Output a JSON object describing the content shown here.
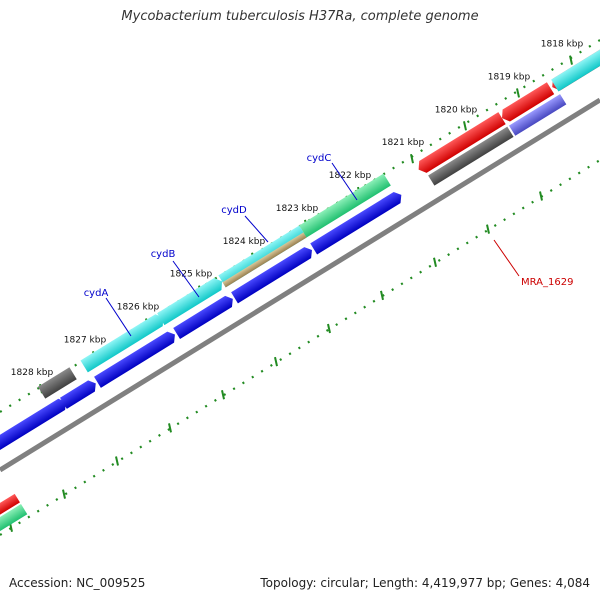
{
  "title": "Mycobacterium tuberculosis H37Ra, complete genome",
  "footer": {
    "accession": "Accession: NC_009525",
    "summary": "Topology: circular; Length: 4,419,977 bp; Genes: 4,084"
  },
  "ruler": {
    "ticks": [
      "1818 kbp",
      "1819 kbp",
      "1820 kbp",
      "1821 kbp",
      "1822 kbp",
      "1823 kbp",
      "1824 kbp",
      "1825 kbp",
      "1826 kbp",
      "1827 kbp",
      "1828 kbp"
    ]
  },
  "gene_labels": [
    {
      "name": "cydC",
      "color": "#0000cc"
    },
    {
      "name": "cydD",
      "color": "#0000cc"
    },
    {
      "name": "cydB",
      "color": "#0000cc"
    },
    {
      "name": "cydA",
      "color": "#0000cc"
    },
    {
      "name": "MRA_1629",
      "color": "#cc0000"
    }
  ],
  "colors": {
    "cds_forward": "#0000e6",
    "cds_reverse": "#ff0000",
    "backbone": "#808080",
    "ruler_ticks": "#228b22",
    "gene_cyan": "#22e0e0",
    "gene_green": "#22dd88",
    "gene_gray": "#555555",
    "gene_tan": "#b8a070",
    "gene_purple": "#6060d8"
  }
}
